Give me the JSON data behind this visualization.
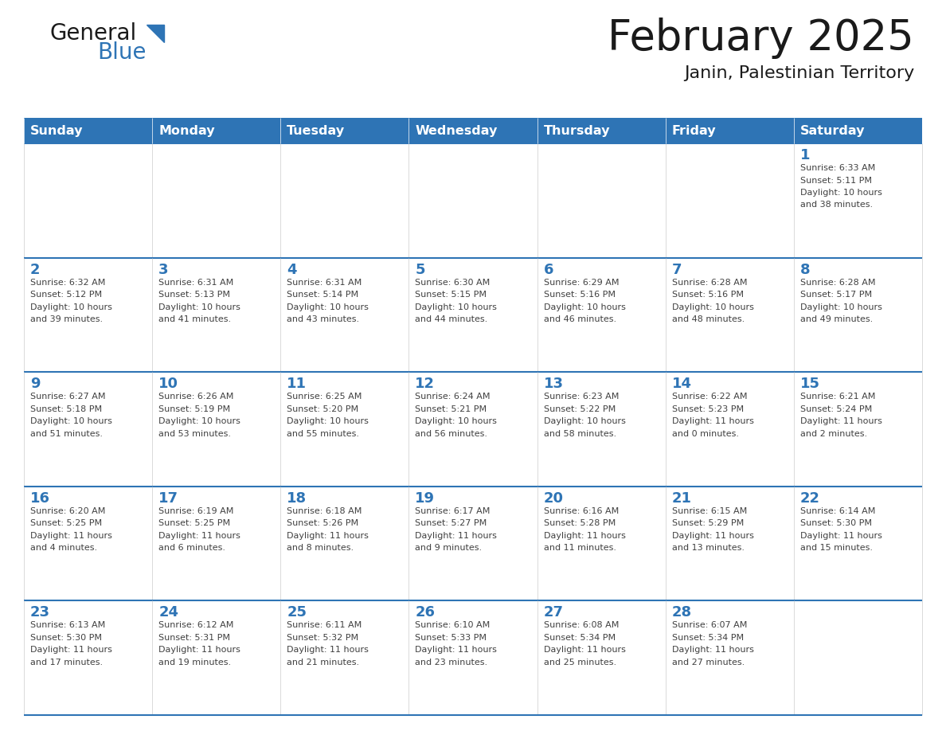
{
  "title": "February 2025",
  "subtitle": "Janin, Palestinian Territory",
  "days_of_week": [
    "Sunday",
    "Monday",
    "Tuesday",
    "Wednesday",
    "Thursday",
    "Friday",
    "Saturday"
  ],
  "header_bg": "#2E74B5",
  "header_text": "#FFFFFF",
  "cell_bg": "#FFFFFF",
  "day_number_color": "#2E74B5",
  "text_color": "#404040",
  "border_color": "#2E74B5",
  "title_color": "#1A1A1A",
  "logo_general_color": "#1A1A1A",
  "logo_blue_color": "#2E74B5",
  "logo_triangle_color": "#2E74B5",
  "calendar_data": [
    [
      {
        "day": null,
        "info": ""
      },
      {
        "day": null,
        "info": ""
      },
      {
        "day": null,
        "info": ""
      },
      {
        "day": null,
        "info": ""
      },
      {
        "day": null,
        "info": ""
      },
      {
        "day": null,
        "info": ""
      },
      {
        "day": 1,
        "info": "Sunrise: 6:33 AM\nSunset: 5:11 PM\nDaylight: 10 hours\nand 38 minutes."
      }
    ],
    [
      {
        "day": 2,
        "info": "Sunrise: 6:32 AM\nSunset: 5:12 PM\nDaylight: 10 hours\nand 39 minutes."
      },
      {
        "day": 3,
        "info": "Sunrise: 6:31 AM\nSunset: 5:13 PM\nDaylight: 10 hours\nand 41 minutes."
      },
      {
        "day": 4,
        "info": "Sunrise: 6:31 AM\nSunset: 5:14 PM\nDaylight: 10 hours\nand 43 minutes."
      },
      {
        "day": 5,
        "info": "Sunrise: 6:30 AM\nSunset: 5:15 PM\nDaylight: 10 hours\nand 44 minutes."
      },
      {
        "day": 6,
        "info": "Sunrise: 6:29 AM\nSunset: 5:16 PM\nDaylight: 10 hours\nand 46 minutes."
      },
      {
        "day": 7,
        "info": "Sunrise: 6:28 AM\nSunset: 5:16 PM\nDaylight: 10 hours\nand 48 minutes."
      },
      {
        "day": 8,
        "info": "Sunrise: 6:28 AM\nSunset: 5:17 PM\nDaylight: 10 hours\nand 49 minutes."
      }
    ],
    [
      {
        "day": 9,
        "info": "Sunrise: 6:27 AM\nSunset: 5:18 PM\nDaylight: 10 hours\nand 51 minutes."
      },
      {
        "day": 10,
        "info": "Sunrise: 6:26 AM\nSunset: 5:19 PM\nDaylight: 10 hours\nand 53 minutes."
      },
      {
        "day": 11,
        "info": "Sunrise: 6:25 AM\nSunset: 5:20 PM\nDaylight: 10 hours\nand 55 minutes."
      },
      {
        "day": 12,
        "info": "Sunrise: 6:24 AM\nSunset: 5:21 PM\nDaylight: 10 hours\nand 56 minutes."
      },
      {
        "day": 13,
        "info": "Sunrise: 6:23 AM\nSunset: 5:22 PM\nDaylight: 10 hours\nand 58 minutes."
      },
      {
        "day": 14,
        "info": "Sunrise: 6:22 AM\nSunset: 5:23 PM\nDaylight: 11 hours\nand 0 minutes."
      },
      {
        "day": 15,
        "info": "Sunrise: 6:21 AM\nSunset: 5:24 PM\nDaylight: 11 hours\nand 2 minutes."
      }
    ],
    [
      {
        "day": 16,
        "info": "Sunrise: 6:20 AM\nSunset: 5:25 PM\nDaylight: 11 hours\nand 4 minutes."
      },
      {
        "day": 17,
        "info": "Sunrise: 6:19 AM\nSunset: 5:25 PM\nDaylight: 11 hours\nand 6 minutes."
      },
      {
        "day": 18,
        "info": "Sunrise: 6:18 AM\nSunset: 5:26 PM\nDaylight: 11 hours\nand 8 minutes."
      },
      {
        "day": 19,
        "info": "Sunrise: 6:17 AM\nSunset: 5:27 PM\nDaylight: 11 hours\nand 9 minutes."
      },
      {
        "day": 20,
        "info": "Sunrise: 6:16 AM\nSunset: 5:28 PM\nDaylight: 11 hours\nand 11 minutes."
      },
      {
        "day": 21,
        "info": "Sunrise: 6:15 AM\nSunset: 5:29 PM\nDaylight: 11 hours\nand 13 minutes."
      },
      {
        "day": 22,
        "info": "Sunrise: 6:14 AM\nSunset: 5:30 PM\nDaylight: 11 hours\nand 15 minutes."
      }
    ],
    [
      {
        "day": 23,
        "info": "Sunrise: 6:13 AM\nSunset: 5:30 PM\nDaylight: 11 hours\nand 17 minutes."
      },
      {
        "day": 24,
        "info": "Sunrise: 6:12 AM\nSunset: 5:31 PM\nDaylight: 11 hours\nand 19 minutes."
      },
      {
        "day": 25,
        "info": "Sunrise: 6:11 AM\nSunset: 5:32 PM\nDaylight: 11 hours\nand 21 minutes."
      },
      {
        "day": 26,
        "info": "Sunrise: 6:10 AM\nSunset: 5:33 PM\nDaylight: 11 hours\nand 23 minutes."
      },
      {
        "day": 27,
        "info": "Sunrise: 6:08 AM\nSunset: 5:34 PM\nDaylight: 11 hours\nand 25 minutes."
      },
      {
        "day": 28,
        "info": "Sunrise: 6:07 AM\nSunset: 5:34 PM\nDaylight: 11 hours\nand 27 minutes."
      },
      {
        "day": null,
        "info": ""
      }
    ]
  ],
  "figsize": [
    11.88,
    9.18
  ],
  "dpi": 100
}
